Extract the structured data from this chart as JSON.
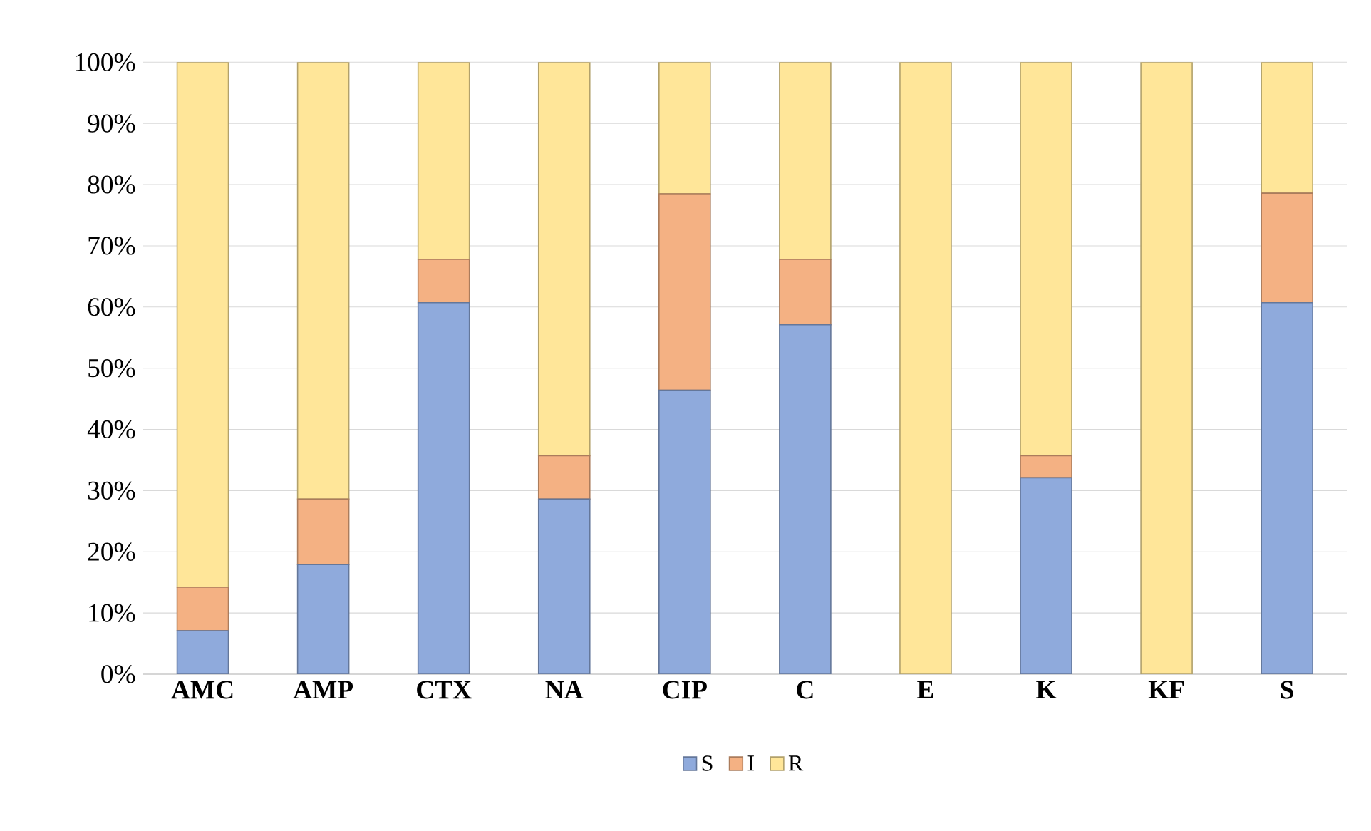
{
  "chart_data": {
    "type": "bar",
    "stacked": true,
    "categories": [
      "AMC",
      "AMP",
      "CTX",
      "NA",
      "CIP",
      "C",
      "E",
      "K",
      "KF",
      "S"
    ],
    "series": [
      {
        "name": "S",
        "color": "#8faadc",
        "values": [
          7.1,
          17.9,
          60.7,
          28.6,
          46.4,
          57.1,
          0,
          32.1,
          0,
          60.7
        ]
      },
      {
        "name": "I",
        "color": "#f4b183",
        "values": [
          7.1,
          10.7,
          7.1,
          7.1,
          32.1,
          10.7,
          0,
          3.6,
          0,
          17.9
        ]
      },
      {
        "name": "R",
        "color": "#ffe699",
        "values": [
          85.8,
          71.4,
          32.2,
          64.3,
          21.5,
          32.2,
          100,
          64.3,
          100,
          21.4
        ]
      }
    ],
    "ylim": [
      0,
      100
    ],
    "yticks": [
      {
        "value": 0,
        "label": "0%"
      },
      {
        "value": 10,
        "label": "10%"
      },
      {
        "value": 20,
        "label": "20%"
      },
      {
        "value": 30,
        "label": "30%"
      },
      {
        "value": 40,
        "label": "40%"
      },
      {
        "value": 50,
        "label": "50%"
      },
      {
        "value": 60,
        "label": "60%"
      },
      {
        "value": 70,
        "label": "70%"
      },
      {
        "value": 80,
        "label": "80%"
      },
      {
        "value": 90,
        "label": "90%"
      },
      {
        "value": 100,
        "label": "100%"
      }
    ],
    "grid": "y",
    "legend": "bottom"
  }
}
